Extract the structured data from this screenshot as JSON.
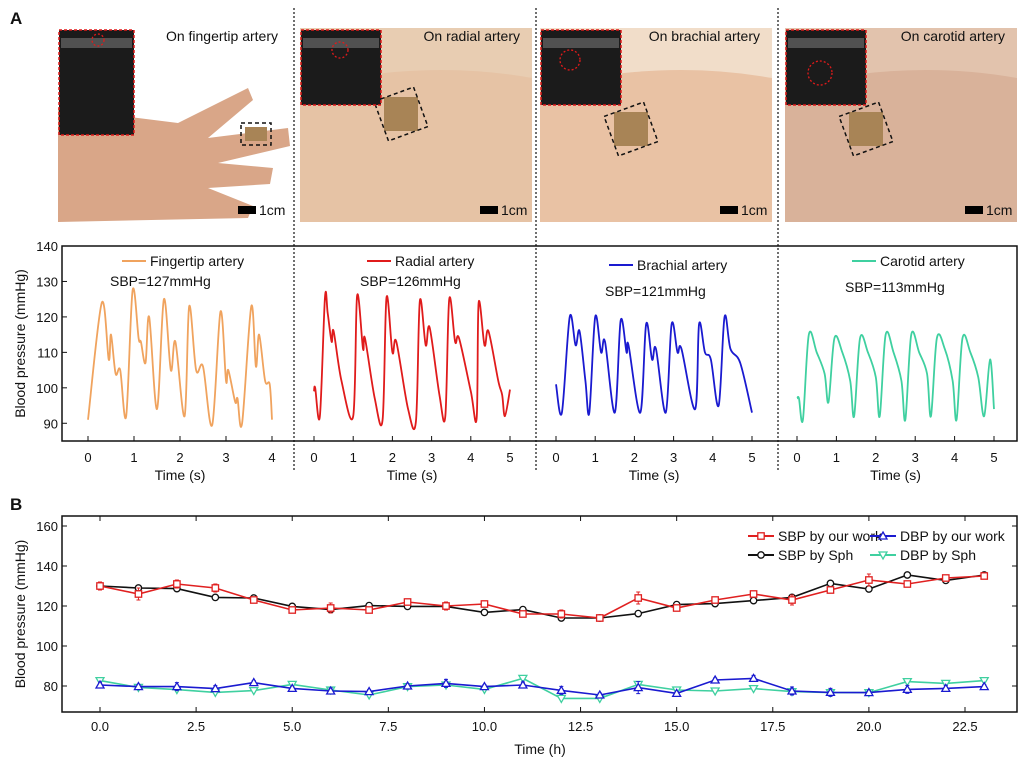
{
  "panel_labels": [
    "A",
    "B"
  ],
  "photos": [
    {
      "title": "On fingertip artery",
      "scale": "1cm",
      "skin": "#d9a688",
      "bg": "#ffffff"
    },
    {
      "title": "On radial artery",
      "scale": "1cm",
      "skin": "#e6c3a5",
      "bg": "#e8cdb2"
    },
    {
      "title": "On brachial artery",
      "scale": "1cm",
      "skin": "#e9c2a4",
      "bg": "#f1ddc9"
    },
    {
      "title": "On carotid artery",
      "scale": "1cm",
      "skin": "#d9b29a",
      "bg": "#e2c3ad"
    }
  ],
  "chart_data": [
    {
      "type": "line",
      "panel": "A",
      "xlabel": "Time (s)",
      "ylabel": "Blood pressure (mmHg)",
      "ylim": [
        85,
        140
      ],
      "yticks": [
        90,
        100,
        110,
        120,
        130,
        140
      ],
      "subplots": [
        {
          "name": "Fingertip artery",
          "annotation": "SBP=127mmHg",
          "color": "#f0a35e",
          "xlim": [
            0,
            4
          ],
          "xticks": [
            0,
            1,
            2,
            3,
            4
          ],
          "x": [
            0,
            0.3,
            0.45,
            0.5,
            0.6,
            0.7,
            0.83,
            0.97,
            1.1,
            1.15,
            1.25,
            1.33,
            1.5,
            1.65,
            1.8,
            1.9,
            2.1,
            2.2,
            2.35,
            2.5,
            2.7,
            2.88,
            3.0,
            3.05,
            3.2,
            3.25,
            3.35,
            3.55,
            3.65,
            3.72,
            3.85,
            3.95,
            4.0
          ],
          "y": [
            91,
            124,
            108,
            115,
            104,
            105,
            92,
            127.5,
            114,
            113,
            107,
            120,
            94,
            125,
            105,
            113,
            92,
            123,
            105,
            106,
            89.5,
            121.5,
            102,
            105,
            96,
            97,
            90,
            123,
            106,
            115,
            102,
            101,
            91
          ]
        },
        {
          "name": "Radial artery",
          "annotation": "SBP=126mmHg",
          "color": "#e01b1b",
          "xlim": [
            0,
            5
          ],
          "xticks": [
            0,
            1,
            2,
            3,
            4,
            5
          ],
          "x": [
            0,
            0.03,
            0.15,
            0.28,
            0.35,
            0.45,
            0.5,
            0.7,
            1.0,
            1.1,
            1.25,
            1.3,
            1.55,
            1.75,
            1.85,
            2.0,
            2.1,
            2.4,
            2.6,
            2.7,
            2.85,
            2.95,
            3.2,
            3.35,
            3.45,
            3.6,
            3.7,
            4.0,
            4.15,
            4.2,
            4.35,
            4.45,
            4.7,
            4.8,
            4.87,
            5.0
          ],
          "y": [
            99,
            100,
            92,
            125.5,
            121,
            113,
            116,
            102,
            92,
            126,
            111,
            114,
            97,
            91,
            125.5,
            110,
            113,
            94,
            90.5,
            124.5,
            112,
            117,
            98,
            92,
            125,
            113,
            114,
            99,
            91.5,
            124,
            112,
            116,
            102,
            98,
            92,
            99.5
          ]
        },
        {
          "name": "Brachial artery",
          "annotation": "SBP=121mmHg",
          "color": "#1a1ad0",
          "xlim": [
            0,
            5
          ],
          "xticks": [
            0,
            1,
            2,
            3,
            4,
            5
          ],
          "x": [
            0,
            0.15,
            0.35,
            0.5,
            0.6,
            0.75,
            0.85,
            1.0,
            1.15,
            1.25,
            1.5,
            1.65,
            1.8,
            1.85,
            2.15,
            2.3,
            2.45,
            2.55,
            2.8,
            2.95,
            3.1,
            3.2,
            3.55,
            3.65,
            3.8,
            3.95,
            4.15,
            4.3,
            4.45,
            4.7,
            5.0
          ],
          "y": [
            101,
            93,
            120,
            112,
            116,
            102,
            93,
            120,
            110,
            113,
            93,
            119,
            110,
            112,
            93,
            118,
            108,
            111,
            93,
            118,
            110,
            111,
            94,
            118,
            110,
            108,
            95,
            120,
            111,
            107,
            93
          ]
        },
        {
          "name": "Carotid artery",
          "annotation": "SBP=113mmHg",
          "color": "#3fd0a0",
          "xlim": [
            0,
            5
          ],
          "xticks": [
            0,
            1,
            2,
            3,
            4,
            5
          ],
          "x": [
            0,
            0.05,
            0.15,
            0.3,
            0.5,
            0.7,
            0.8,
            0.95,
            1.15,
            1.35,
            1.45,
            1.6,
            1.8,
            2.0,
            2.1,
            2.25,
            2.45,
            2.65,
            2.75,
            2.9,
            3.1,
            3.3,
            3.4,
            3.55,
            3.75,
            3.95,
            4.05,
            4.2,
            4.4,
            4.6,
            4.75,
            4.9,
            5.0
          ],
          "y": [
            97,
            97,
            91,
            115,
            110,
            104,
            96,
            114,
            110,
            102,
            92,
            114,
            110,
            103,
            92,
            115,
            110,
            102,
            91,
            115,
            110,
            104,
            92,
            114,
            111,
            102,
            91,
            114,
            110,
            103,
            92,
            108,
            94
          ]
        }
      ]
    },
    {
      "type": "line",
      "panel": "B",
      "xlabel": "Time (h)",
      "ylabel": "Blood pressure (mmHg)",
      "xlim": [
        -1,
        24
      ],
      "ylim": [
        67,
        165
      ],
      "xticks": [
        "0.0",
        "2.5",
        "5.0",
        "7.5",
        "10.0",
        "12.5",
        "15.0",
        "17.5",
        "20.0",
        "22.5"
      ],
      "yticks": [
        80,
        100,
        120,
        140,
        160
      ],
      "legend": "top-right",
      "x": [
        0,
        1,
        2,
        3,
        4,
        5,
        6,
        7,
        8,
        9,
        10,
        11,
        12,
        13,
        14,
        15,
        16,
        17,
        18,
        19,
        20,
        21,
        22,
        23
      ],
      "series": [
        {
          "name": "SBP by our work",
          "color": "#e02020",
          "marker": "square",
          "values": [
            130,
            126,
            131,
            129,
            123,
            118,
            119,
            118,
            122,
            120,
            121,
            116,
            116,
            114,
            124,
            119,
            123,
            126,
            123,
            128,
            133,
            131,
            134,
            135
          ],
          "errors": [
            2,
            3,
            2,
            2,
            1.5,
            1.5,
            2.5,
            1.5,
            1,
            2,
            1,
            1.5,
            2,
            1.5,
            3,
            1.5,
            1,
            1,
            2.5,
            1,
            3,
            1.5,
            1,
            1
          ]
        },
        {
          "name": "DBP by our work",
          "color": "#1a1ad0",
          "marker": "triangle-up",
          "values": [
            80.5,
            79.7,
            79.7,
            78.7,
            81.7,
            78.8,
            77.5,
            77.2,
            80,
            81.3,
            79.7,
            80.5,
            77.8,
            75.5,
            79.2,
            76.3,
            83,
            83.8,
            77.5,
            76.8,
            76.7,
            78.3,
            78.8,
            79.7
          ],
          "errors": [
            1.5,
            1,
            2,
            1.5,
            1,
            1,
            1.5,
            1,
            1,
            2,
            1,
            1.5,
            2,
            1,
            3,
            1,
            1,
            1.5,
            2,
            2,
            1,
            2,
            1.5,
            1
          ]
        },
        {
          "name": "SBP by Sph",
          "color": "#111111",
          "marker": "circle",
          "values": [
            130,
            129,
            128.7,
            124.3,
            124,
            119.8,
            118.2,
            120.2,
            119.8,
            119.8,
            116.8,
            118.2,
            114,
            114,
            116.2,
            120.7,
            121.2,
            122.7,
            124.3,
            131.3,
            128.5,
            135.5,
            132.8,
            135.5
          ]
        },
        {
          "name": "DBP by Sph",
          "color": "#3fd0a0",
          "marker": "triangle-down",
          "values": [
            82.7,
            79.3,
            78.2,
            76.8,
            77.7,
            80.8,
            78,
            75.5,
            79.7,
            80.5,
            78.3,
            83.8,
            73.8,
            73.8,
            80.8,
            78,
            77.5,
            78.7,
            77.2,
            76.7,
            76.7,
            82.2,
            81.3,
            82.7
          ]
        }
      ]
    }
  ]
}
